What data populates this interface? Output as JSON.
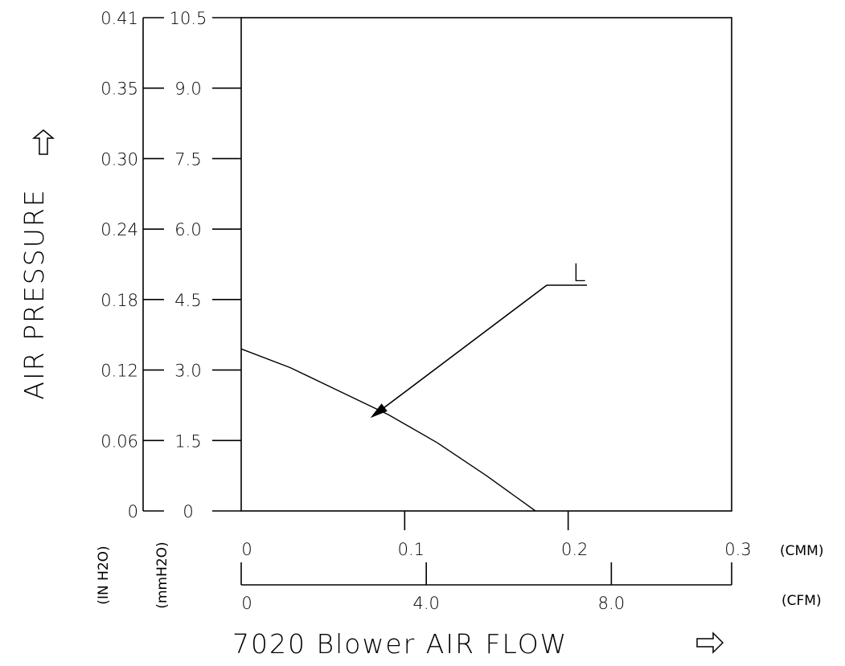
{
  "chart_data": {
    "type": "line",
    "title": "",
    "ylabel": "AIR PRESSURE",
    "xlabel": "7020 Blower AIR FLOW",
    "y_axes": [
      {
        "unit": "(IN H2O)",
        "ticks": [
          "0",
          "0.06",
          "0.12",
          "0.18",
          "0.24",
          "0.30",
          "0.35",
          "0.41"
        ]
      },
      {
        "unit": "(mmH2O)",
        "ticks": [
          "0",
          "1.5",
          "3.0",
          "4.5",
          "6.0",
          "7.5",
          "9.0",
          "10.5"
        ],
        "ylim": [
          0,
          10.5
        ]
      }
    ],
    "x_axes": [
      {
        "unit": "(CMM)",
        "ticks": [
          "0",
          "0.1",
          "0.2",
          "0.3"
        ],
        "xlim": [
          0,
          0.3
        ]
      },
      {
        "unit": "(CFM)",
        "ticks": [
          "0",
          "4.0",
          "8.0"
        ],
        "tick_values": [
          0,
          4.0,
          8.0
        ],
        "xlim": [
          0,
          10.6
        ]
      }
    ],
    "series": [
      {
        "name": "L",
        "x": [
          0,
          0.03,
          0.06,
          0.09,
          0.12,
          0.15,
          0.18
        ],
        "y": [
          3.45,
          3.05,
          2.55,
          2.05,
          1.45,
          0.75,
          0
        ]
      }
    ]
  }
}
